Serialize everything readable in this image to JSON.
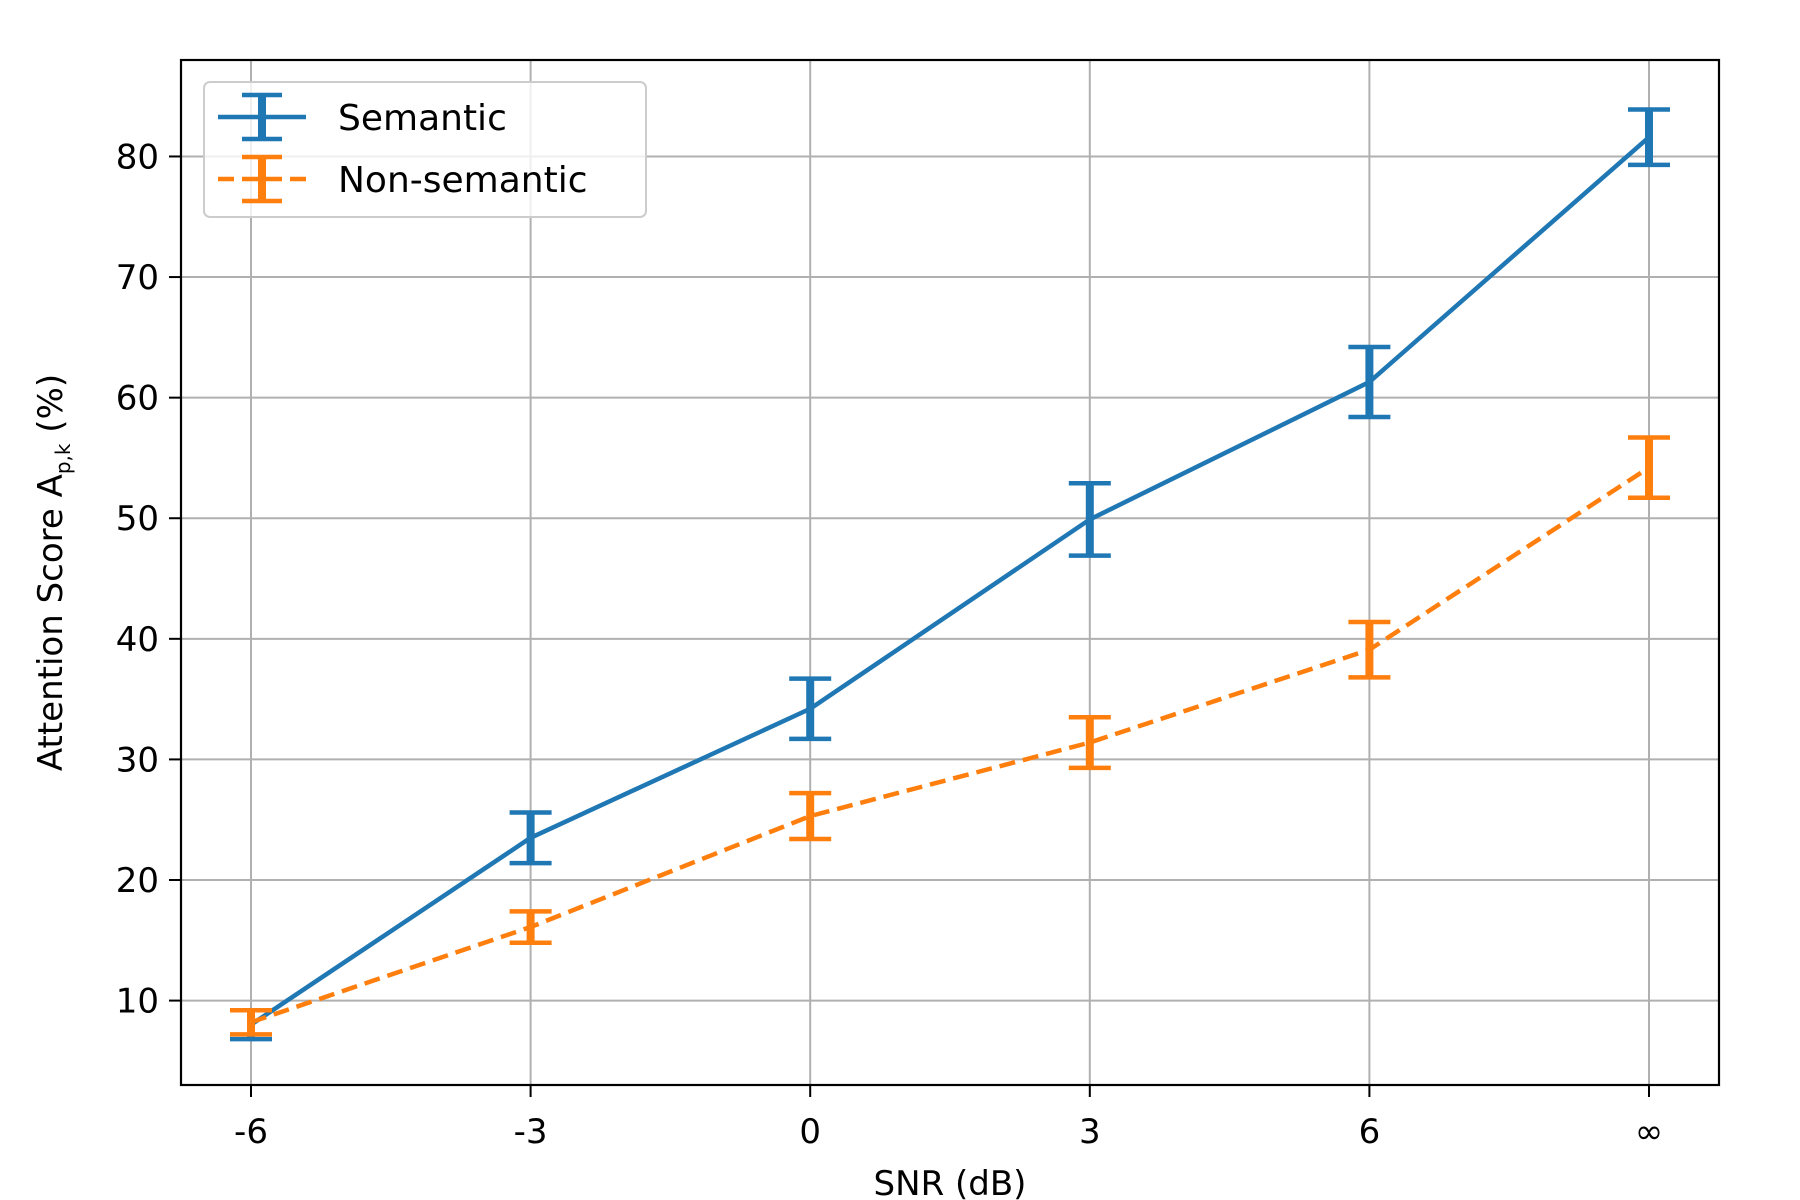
{
  "chart_data": {
    "type": "line",
    "title": "",
    "xlabel": "SNR (dB)",
    "ylabel": {
      "prefix": "Attention Score A",
      "subscript": "p,k",
      "suffix": " (%)"
    },
    "categories": [
      "-6",
      "-3",
      "0",
      "3",
      "6",
      "∞"
    ],
    "ylim": [
      3,
      88
    ],
    "yticks": [
      10,
      20,
      30,
      40,
      50,
      60,
      70,
      80
    ],
    "grid": true,
    "legend_position": "top-left",
    "series": [
      {
        "name": "Semantic",
        "color": "#1f77b4",
        "line_style": "solid",
        "values": [
          8.0,
          23.5,
          34.2,
          49.9,
          61.3,
          81.6
        ],
        "errors": [
          1.2,
          2.1,
          2.5,
          3.0,
          2.9,
          2.3
        ]
      },
      {
        "name": "Non-semantic",
        "color": "#ff7f0e",
        "line_style": "dashed",
        "values": [
          8.2,
          16.1,
          25.3,
          31.4,
          39.1,
          54.2
        ],
        "errors": [
          1.0,
          1.3,
          1.9,
          2.1,
          2.3,
          2.5
        ]
      }
    ]
  }
}
